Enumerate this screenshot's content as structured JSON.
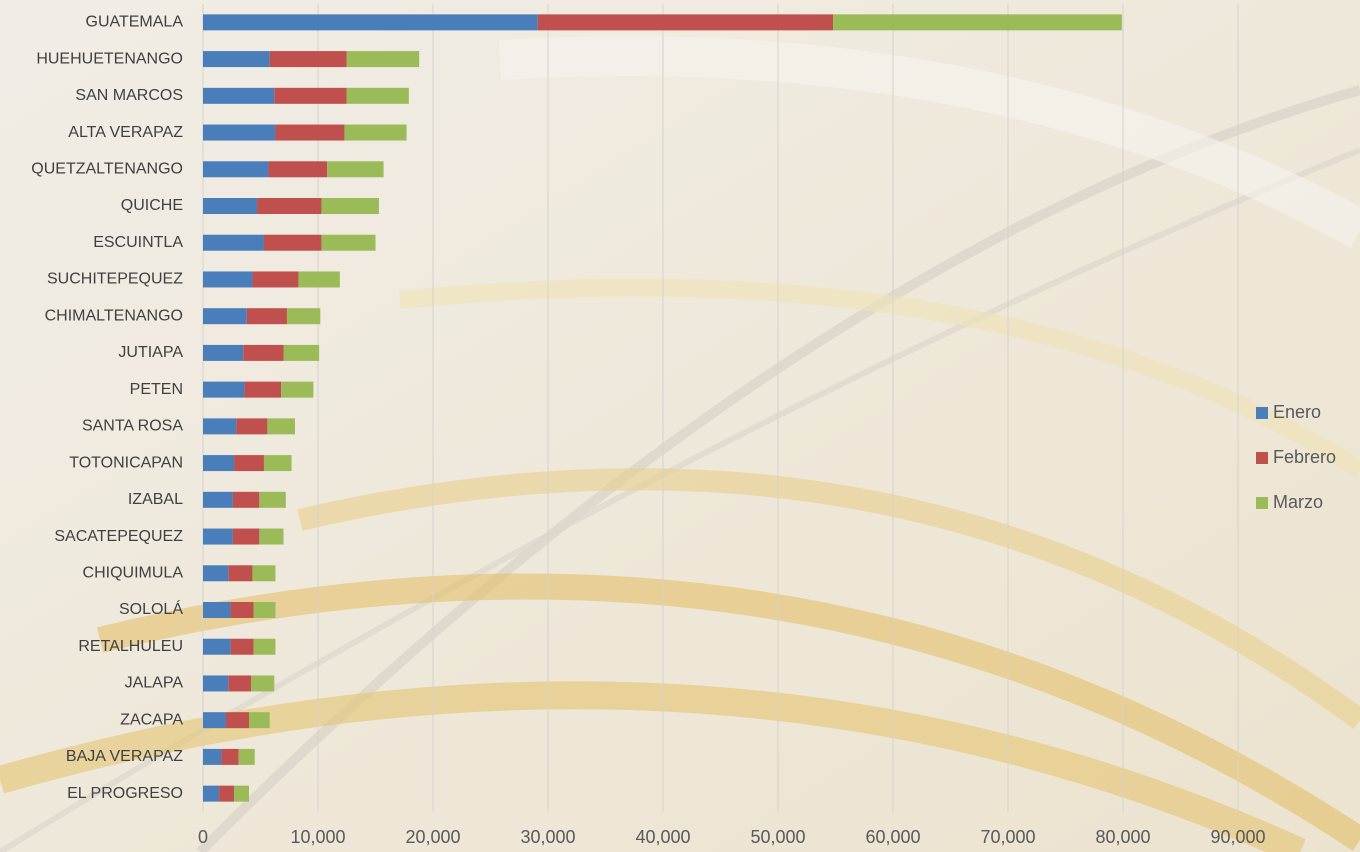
{
  "chart_data": {
    "type": "stacked_bar_horizontal",
    "categories": [
      "GUATEMALA",
      "HUEHUETENANGO",
      "SAN MARCOS",
      "ALTA VERAPAZ",
      "QUETZALTENANGO",
      "QUICHE",
      "ESCUINTLA",
      "SUCHITEPEQUEZ",
      "CHIMALTENANGO",
      "JUTIAPA",
      "PETEN",
      "SANTA ROSA",
      "TOTONICAPAN",
      "IZABAL",
      "SACATEPEQUEZ",
      "CHIQUIMULA",
      "SOLOLÁ",
      "RETALHULEU",
      "JALAPA",
      "ZACAPA",
      "BAJA VERAPAZ",
      "EL PROGRESO"
    ],
    "series": [
      {
        "name": "Enero",
        "color": "#4a7ebb",
        "values": [
          29100,
          5800,
          6200,
          6300,
          5700,
          4700,
          5300,
          4300,
          3800,
          3500,
          3600,
          2900,
          2700,
          2600,
          2600,
          2200,
          2400,
          2400,
          2200,
          2000,
          1600,
          1400
        ]
      },
      {
        "name": "Febrero",
        "color": "#c0504d",
        "values": [
          25700,
          6700,
          6300,
          6000,
          5100,
          5600,
          5000,
          4000,
          3500,
          3500,
          3200,
          2700,
          2600,
          2300,
          2300,
          2100,
          2000,
          2000,
          2000,
          2000,
          1500,
          1300
        ]
      },
      {
        "name": "Marzo",
        "color": "#9bbb59",
        "values": [
          25100,
          6300,
          5400,
          5400,
          4900,
          5000,
          4700,
          3600,
          2900,
          3100,
          2800,
          2400,
          2400,
          2300,
          2100,
          2000,
          1900,
          1900,
          2000,
          1800,
          1400,
          1300
        ]
      }
    ],
    "xlim": [
      0,
      90000
    ],
    "xticks": [
      0,
      {
        "value": 10000,
        "label": "10,000"
      },
      {
        "value": 20000,
        "label": "20,000"
      },
      {
        "value": 30000,
        "label": "30,000"
      },
      {
        "value": 40000,
        "label": "40,000"
      },
      {
        "value": 50000,
        "label": "50,000"
      },
      {
        "value": 60000,
        "label": "60,000"
      },
      {
        "value": 70000,
        "label": "70,000"
      },
      {
        "value": 80000,
        "label": "80,000"
      },
      {
        "value": 90000,
        "label": "90,000"
      }
    ],
    "grid": true,
    "legend_position": "right"
  }
}
